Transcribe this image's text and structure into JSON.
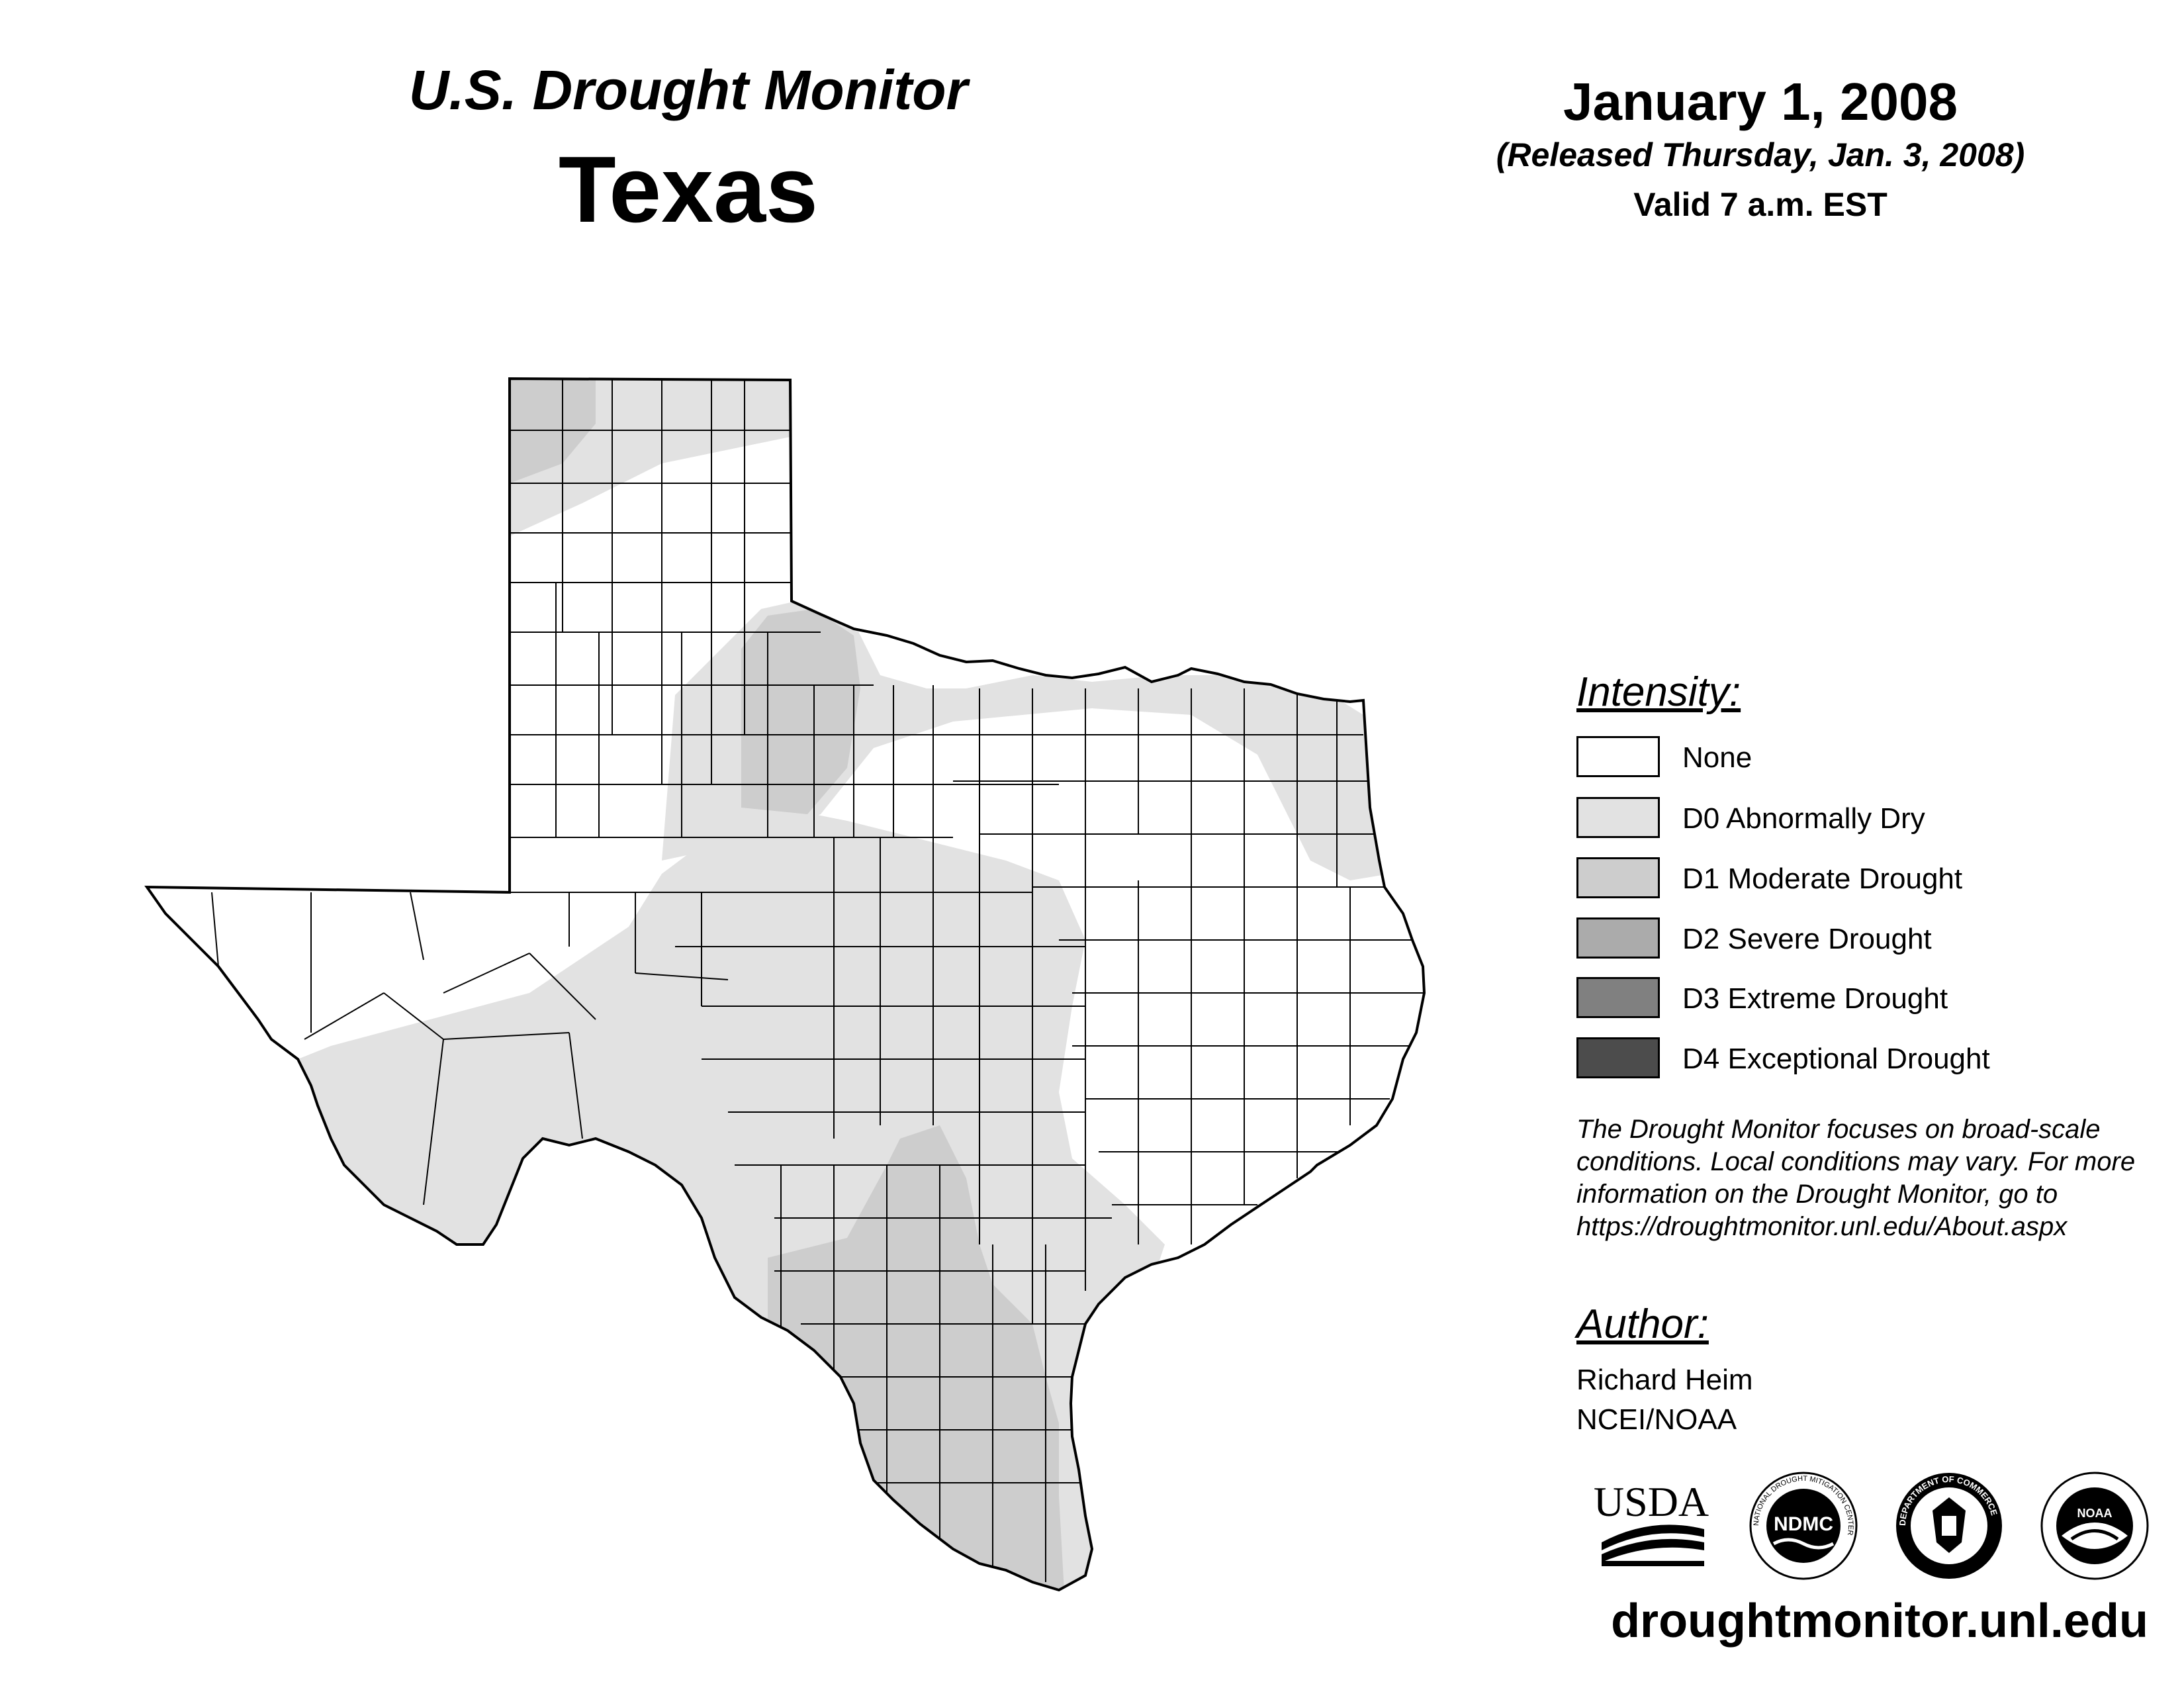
{
  "header": {
    "title_line1": "U.S. Drought Monitor",
    "title_line2": "Texas",
    "date": "January 1, 2008",
    "released": "(Released Thursday, Jan. 3, 2008)",
    "valid": "Valid 7 a.m. EST"
  },
  "legend": {
    "title": "Intensity:",
    "items": [
      {
        "label": "None",
        "color": "#ffffff"
      },
      {
        "label": "D0 Abnormally Dry",
        "color": "#e2e2e2"
      },
      {
        "label": "D1 Moderate Drought",
        "color": "#cdcdcd"
      },
      {
        "label": "D2 Severe Drought",
        "color": "#ababab"
      },
      {
        "label": "D3 Extreme Drought",
        "color": "#808080"
      },
      {
        "label": "D4 Exceptional Drought",
        "color": "#4c4c4c"
      }
    ]
  },
  "note": "The Drought Monitor focuses on broad-scale conditions. Local conditions may vary. For more information on the Drought Monitor, go to https://droughtmonitor.unl.edu/About.aspx",
  "author": {
    "title": "Author:",
    "name": "Richard Heim",
    "org": "NCEI/NOAA"
  },
  "logos": {
    "usda": "USDA",
    "ndmc": "NDMC",
    "ndmc_ring": "NATIONAL DROUGHT MITIGATION CENTER",
    "doc_ring": "DEPARTMENT OF COMMERCE",
    "noaa": "NOAA"
  },
  "website": "droughtmonitor.unl.edu",
  "map_colors": {
    "none": "#ffffff",
    "d0": "#e2e2e2",
    "d1": "#cdcdcd",
    "d2": "#ababab"
  }
}
